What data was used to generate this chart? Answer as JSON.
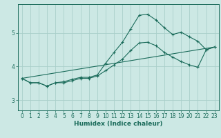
{
  "xlabel": "Humidex (Indice chaleur)",
  "background_color": "#cce8e4",
  "line_color": "#1a6b5a",
  "grid_color": "#aacfca",
  "xlim": [
    -0.5,
    23.5
  ],
  "ylim": [
    2.7,
    5.85
  ],
  "yticks": [
    3,
    4,
    5
  ],
  "xticks": [
    0,
    1,
    2,
    3,
    4,
    5,
    6,
    7,
    8,
    9,
    10,
    11,
    12,
    13,
    14,
    15,
    16,
    17,
    18,
    19,
    20,
    21,
    22,
    23
  ],
  "curve1_x": [
    0,
    1,
    2,
    3,
    4,
    5,
    6,
    7,
    8,
    9,
    10,
    11,
    12,
    13,
    14,
    15,
    16,
    17,
    18,
    19,
    20,
    21,
    22,
    23
  ],
  "curve1_y": [
    3.65,
    3.52,
    3.52,
    3.42,
    3.52,
    3.52,
    3.58,
    3.65,
    3.65,
    3.72,
    3.88,
    4.05,
    4.22,
    4.48,
    4.7,
    4.72,
    4.62,
    4.42,
    4.28,
    4.15,
    4.05,
    3.98,
    4.5,
    4.58
  ],
  "curve2_x": [
    0,
    1,
    2,
    3,
    4,
    5,
    6,
    7,
    8,
    9,
    10,
    11,
    12,
    13,
    14,
    15,
    16,
    17,
    18,
    19,
    20,
    21,
    22,
    23
  ],
  "curve2_y": [
    3.65,
    3.52,
    3.52,
    3.42,
    3.52,
    3.55,
    3.62,
    3.68,
    3.68,
    3.75,
    4.1,
    4.42,
    4.72,
    5.12,
    5.52,
    5.55,
    5.38,
    5.15,
    4.95,
    5.02,
    4.88,
    4.75,
    4.5,
    4.58
  ],
  "curve3_x": [
    0,
    23
  ],
  "curve3_y": [
    3.65,
    4.58
  ],
  "tick_fontsize": 5.5,
  "xlabel_fontsize": 6.5
}
